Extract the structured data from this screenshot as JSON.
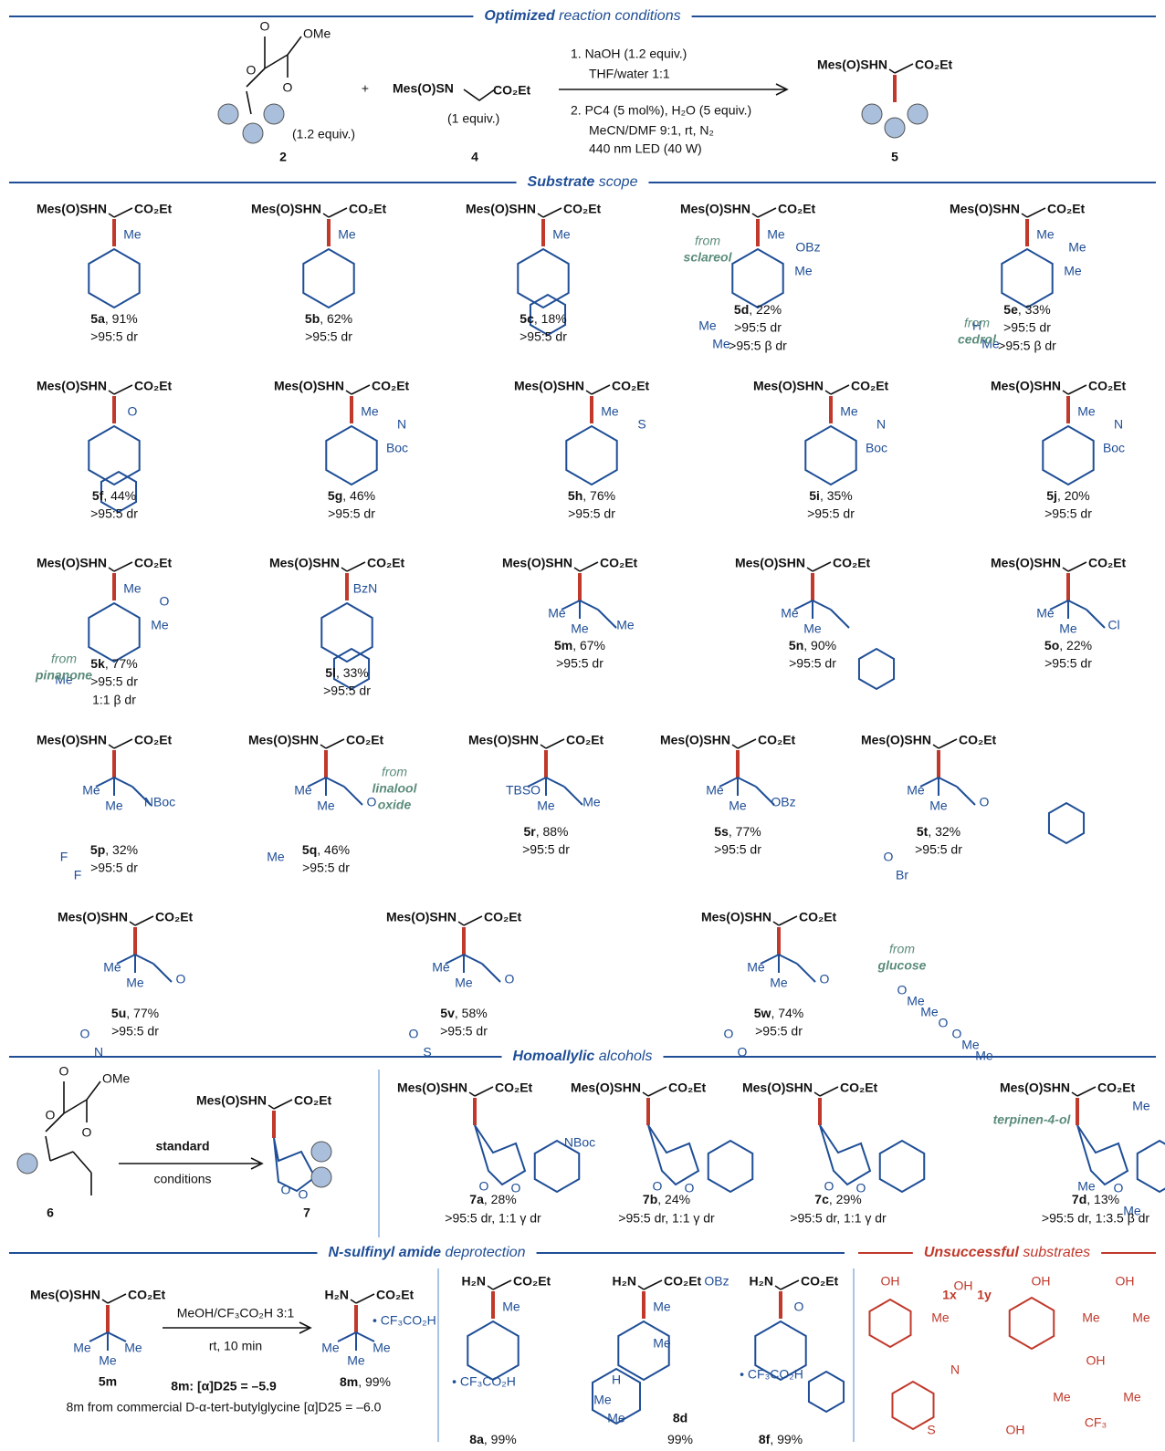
{
  "headers": {
    "conditions": {
      "em": "Optimized",
      "rest": "reaction conditions"
    },
    "scope": {
      "em": "Substrate",
      "rest": "scope"
    },
    "homo": {
      "em": "Homoallylic",
      "rest": "alcohols"
    },
    "deprot": {
      "em": "N-sulfinyl amide",
      "rest": "deprotection"
    },
    "fail": {
      "em": "Unsuccessful",
      "rest": "substrates"
    }
  },
  "top": {
    "r2": {
      "atoms": [
        "O",
        "O",
        "OMe",
        "O"
      ],
      "equiv": "(1.2 equiv.)",
      "label": "2"
    },
    "plus": "+",
    "r4": {
      "amine": "Mes(O)SN",
      "ester": "CO₂Et",
      "equiv": "(1 equiv.)",
      "label": "4"
    },
    "conditions": [
      "1. NaOH (1.2 equiv.)",
      "THF/water 1:1",
      "2. PC4 (5 mol%), H₂O (5 equiv.)",
      "MeCN/DMF 9:1, rt, N₂",
      "440 nm LED (40 W)"
    ],
    "p5": {
      "amine": "Mes(O)SHN",
      "ester": "CO₂Et",
      "label": "5"
    }
  },
  "common": {
    "amine": "Mes(O)SHN",
    "ester": "CO₂Et",
    "free_amine": "H₂N",
    "salt": "• CF₃CO₂H"
  },
  "substrates": [
    {
      "label": "5a",
      "yield": ", 91%",
      "dr": [
        ">95:5 dr"
      ],
      "atoms": [
        "Me"
      ]
    },
    {
      "label": "5b",
      "yield": ", 62%",
      "dr": [
        ">95:5 dr"
      ],
      "atoms": [
        "Me"
      ]
    },
    {
      "label": "5c",
      "yield": ", 18%",
      "dr": [
        ">95:5 dr"
      ],
      "atoms": [
        "Me"
      ]
    },
    {
      "label": "5d",
      "yield": ", 22%",
      "dr": [
        ">95:5 dr",
        ">95:5 β dr"
      ],
      "atoms": [
        "Me",
        "OBz",
        "Me",
        "Me",
        "Me"
      ],
      "note": [
        "from",
        "sclareol"
      ]
    },
    {
      "label": "5e",
      "yield": ", 33%",
      "dr": [
        ">95:5 dr",
        ">95:5 β dr"
      ],
      "atoms": [
        "Me",
        "Me",
        "Me",
        "H",
        "Me"
      ],
      "note": [
        "from",
        "cedrol"
      ]
    },
    {
      "label": "5f",
      "yield": ", 44%",
      "dr": [
        ">95:5 dr"
      ],
      "atoms": [
        "O"
      ]
    },
    {
      "label": "5g",
      "yield": ", 46%",
      "dr": [
        ">95:5 dr"
      ],
      "atoms": [
        "Me",
        "N",
        "Boc"
      ]
    },
    {
      "label": "5h",
      "yield": ", 76%",
      "dr": [
        ">95:5 dr"
      ],
      "atoms": [
        "Me",
        "S"
      ]
    },
    {
      "label": "5i",
      "yield": ", 35%",
      "dr": [
        ">95:5 dr"
      ],
      "atoms": [
        "Me",
        "N",
        "Boc"
      ]
    },
    {
      "label": "5j",
      "yield": ", 20%",
      "dr": [
        ">95:5 dr"
      ],
      "atoms": [
        "Me",
        "N",
        "Boc"
      ]
    },
    {
      "label": "5k",
      "yield": ", 77%",
      "dr": [
        ">95:5 dr",
        "1:1 β dr"
      ],
      "atoms": [
        "Me",
        "O",
        "Me",
        "Me"
      ],
      "note": [
        "from",
        "pinanone"
      ]
    },
    {
      "label": "5l",
      "yield": ", 33%",
      "dr": [
        ">95:5 dr"
      ],
      "atoms": [
        "BzN"
      ]
    },
    {
      "label": "5m",
      "yield": ", 67%",
      "dr": [
        ">95:5 dr"
      ],
      "atoms": [
        "Me",
        "Me",
        "Me"
      ]
    },
    {
      "label": "5n",
      "yield": ", 90%",
      "dr": [
        ">95:5 dr"
      ],
      "atoms": [
        "Me",
        "Me"
      ]
    },
    {
      "label": "5o",
      "yield": ", 22%",
      "dr": [
        ">95:5 dr"
      ],
      "atoms": [
        "Me",
        "Me",
        "Cl"
      ]
    },
    {
      "label": "5p",
      "yield": ", 32%",
      "dr": [
        ">95:5 dr"
      ],
      "atoms": [
        "Me",
        "Me",
        "NBoc",
        "F",
        "F"
      ]
    },
    {
      "label": "5q",
      "yield": ", 46%",
      "dr": [
        ">95:5 dr"
      ],
      "atoms": [
        "Me",
        "Me",
        "O",
        "Me"
      ],
      "note": [
        "from",
        "linalool",
        "oxide"
      ]
    },
    {
      "label": "5r",
      "yield": ", 88%",
      "dr": [
        ">95:5 dr"
      ],
      "atoms": [
        "TBSO",
        "Me",
        "Me"
      ]
    },
    {
      "label": "5s",
      "yield": ", 77%",
      "dr": [
        ">95:5 dr"
      ],
      "atoms": [
        "Me",
        "Me",
        "OBz"
      ]
    },
    {
      "label": "5t",
      "yield": ", 32%",
      "dr": [
        ">95:5 dr"
      ],
      "atoms": [
        "Me",
        "Me",
        "O",
        "O",
        "Br"
      ]
    },
    {
      "label": "5u",
      "yield": ", 77%",
      "dr": [
        ">95:5 dr"
      ],
      "atoms": [
        "Me",
        "Me",
        "O",
        "O",
        "N"
      ]
    },
    {
      "label": "5v",
      "yield": ", 58%",
      "dr": [
        ">95:5 dr"
      ],
      "atoms": [
        "Me",
        "Me",
        "O",
        "O",
        "S"
      ]
    },
    {
      "label": "5w",
      "yield": ", 74%",
      "dr": [
        ">95:5 dr"
      ],
      "atoms": [
        "Me",
        "Me",
        "O",
        "O",
        "O",
        "O",
        "Me",
        "Me",
        "O",
        "O",
        "Me",
        "Me"
      ],
      "note": [
        "from",
        "glucose"
      ]
    }
  ],
  "homo": {
    "r6": {
      "atoms": [
        "O",
        "O",
        "OMe",
        "O"
      ],
      "label": "6"
    },
    "arrow": [
      "standard",
      "conditions"
    ],
    "p7": {
      "atoms": [
        "O",
        "O"
      ],
      "label": "7"
    },
    "items": [
      {
        "label": "7a",
        "yield": ", 28%",
        "dr": ">95:5 dr, 1:1 γ dr",
        "atoms": [
          "O",
          "O",
          "NBoc"
        ]
      },
      {
        "label": "7b",
        "yield": ", 24%",
        "dr": ">95:5 dr, 1:1 γ dr",
        "atoms": [
          "O",
          "O"
        ]
      },
      {
        "label": "7c",
        "yield": ", 29%",
        "dr": ">95:5 dr, 1:1 γ dr",
        "atoms": [
          "O",
          "O"
        ]
      },
      {
        "label": "7d",
        "yield": ", 13%",
        "dr": ">95:5 dr, 1:3.5 β dr",
        "atoms": [
          "Me",
          "O",
          "O",
          "Me",
          "Me"
        ],
        "note": [
          "terpinen-4-ol"
        ]
      }
    ]
  },
  "deprot": {
    "start": {
      "label": "5m",
      "atoms": [
        "Me",
        "Me",
        "Me"
      ]
    },
    "conditions": [
      "MeOH/CF₃CO₂H 3:1",
      "rt, 10 min"
    ],
    "product": {
      "label": "8m",
      "yield": ", 99%",
      "atoms": [
        "Me",
        "Me",
        "Me"
      ]
    },
    "rotation": [
      "8m: [α]D25 = –5.9",
      "8m from commercial D-α-tert-butylglycine [α]D25 = –6.0"
    ],
    "items": [
      {
        "label": "8a",
        "yield": ", 99%",
        "atoms": [
          "Me"
        ]
      },
      {
        "label": "8d",
        "yield": "99%",
        "atoms": [
          "Me",
          "OBz",
          "Me",
          "H",
          "Me",
          "Me"
        ]
      },
      {
        "label": "8f",
        "yield": ", 99%",
        "atoms": [
          "O"
        ]
      }
    ]
  },
  "fail": {
    "atoms": [
      "OH",
      "1x",
      "OH",
      "1y",
      "Me",
      "OH",
      "OH",
      "Me",
      "Me",
      "N",
      "S",
      "OH",
      "OH",
      "Me",
      "Me",
      "CF₃"
    ]
  }
}
